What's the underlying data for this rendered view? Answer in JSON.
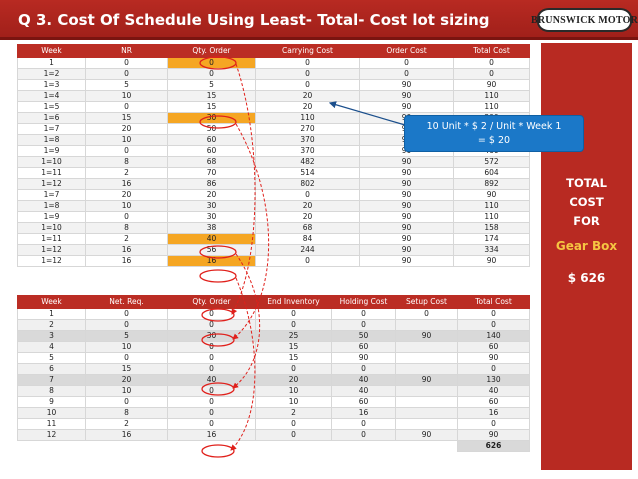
{
  "header": {
    "title": "Q 3.  Cost Of Schedule Using Least- Total- Cost lot sizing",
    "logo_text": "BRUNSWICK MOTOR"
  },
  "table1": {
    "headers": [
      "Week",
      "NR",
      "Qty. Order",
      "Carrying Cost",
      "Order Cost",
      "Total Cost"
    ],
    "rows": [
      [
        "1",
        "0",
        "0",
        "0",
        "0",
        "0"
      ],
      [
        "1=2",
        "0",
        "0",
        "0",
        "0",
        "0"
      ],
      [
        "1=3",
        "5",
        "5",
        "0",
        "90",
        "90"
      ],
      [
        "1=4",
        "10",
        "15",
        "20",
        "90",
        "110"
      ],
      [
        "1=5",
        "0",
        "15",
        "20",
        "90",
        "110"
      ],
      [
        "1=6",
        "15",
        "30",
        "110",
        "90",
        "200"
      ],
      [
        "1=7",
        "20",
        "50",
        "270",
        "90",
        "360"
      ],
      [
        "1=8",
        "10",
        "60",
        "370",
        "90",
        "460"
      ],
      [
        "1=9",
        "0",
        "60",
        "370",
        "90",
        "460"
      ],
      [
        "1=10",
        "8",
        "68",
        "482",
        "90",
        "572"
      ],
      [
        "1=11",
        "2",
        "70",
        "514",
        "90",
        "604"
      ],
      [
        "1=12",
        "16",
        "86",
        "802",
        "90",
        "892"
      ],
      [
        "1=7",
        "20",
        "20",
        "0",
        "90",
        "90"
      ],
      [
        "1=8",
        "10",
        "30",
        "20",
        "90",
        "110"
      ],
      [
        "1=9",
        "0",
        "30",
        "20",
        "90",
        "110"
      ],
      [
        "1=10",
        "8",
        "38",
        "68",
        "90",
        "158"
      ],
      [
        "1=11",
        "2",
        "40",
        "84",
        "90",
        "174"
      ],
      [
        "1=12",
        "16",
        "56",
        "244",
        "90",
        "334"
      ],
      [
        "1=12",
        "16",
        "16",
        "0",
        "90",
        "90"
      ]
    ],
    "highlight_rows": [
      0,
      5,
      16,
      18
    ]
  },
  "table2": {
    "headers": [
      "Week",
      "Net. Req.",
      "Qty. Order",
      "End Inventory",
      "Holding Cost",
      "Setup Cost",
      "Total Cost"
    ],
    "rows": [
      [
        "1",
        "0",
        "0",
        "0",
        "0",
        "0",
        "0"
      ],
      [
        "2",
        "0",
        "0",
        "0",
        "0",
        "",
        "0"
      ],
      [
        "3",
        "5",
        "30",
        "25",
        "50",
        "90",
        "140"
      ],
      [
        "4",
        "10",
        "0",
        "15",
        "60",
        "",
        "60"
      ],
      [
        "5",
        "0",
        "0",
        "15",
        "90",
        "",
        "90"
      ],
      [
        "6",
        "15",
        "0",
        "0",
        "0",
        "",
        "0"
      ],
      [
        "7",
        "20",
        "40",
        "20",
        "40",
        "90",
        "130"
      ],
      [
        "8",
        "10",
        "0",
        "10",
        "40",
        "",
        "40"
      ],
      [
        "9",
        "0",
        "0",
        "10",
        "60",
        "",
        "60"
      ],
      [
        "10",
        "8",
        "0",
        "2",
        "16",
        "",
        "16"
      ],
      [
        "11",
        "2",
        "0",
        "0",
        "0",
        "",
        "0"
      ],
      [
        "12",
        "16",
        "16",
        "0",
        "0",
        "90",
        "90"
      ]
    ],
    "total": "626"
  },
  "callout": {
    "line1": "10 Unit * $ 2 / Unit * Week 1",
    "line2": "= $ 20"
  },
  "side_panel": {
    "line1": "TOTAL",
    "line2": "COST",
    "line3": "FOR",
    "part": "Gear Box",
    "cost": "$ 626"
  },
  "colors": {
    "brand_red": "#b82a22",
    "highlight": "#f5a623",
    "callout_blue": "#1b78c8",
    "arrow_red": "#e0201b"
  }
}
